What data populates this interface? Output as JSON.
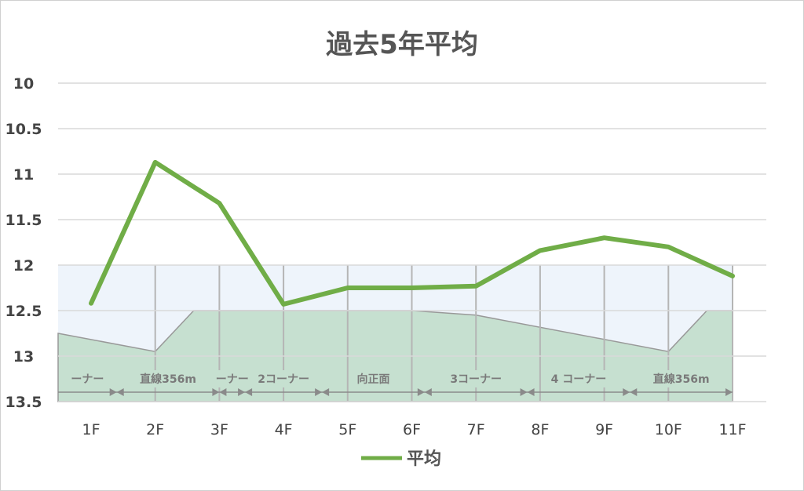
{
  "chart_data": {
    "type": "line",
    "title": "過去5年平均",
    "categories": [
      "1F",
      "2F",
      "3F",
      "4F",
      "5F",
      "6F",
      "7F",
      "8F",
      "9F",
      "10F",
      "11F"
    ],
    "y_ticks": [
      "10",
      "10.5",
      "11",
      "11.5",
      "12",
      "12.5",
      "13",
      "13.5"
    ],
    "ylim": [
      10,
      13.5
    ],
    "y_inverted": true,
    "grid": true,
    "legend_position": "bottom",
    "series": [
      {
        "name": "平均",
        "color": "#70ad47",
        "values": [
          12.42,
          10.87,
          11.32,
          12.43,
          12.25,
          12.25,
          12.23,
          11.84,
          11.7,
          11.8,
          12.12
        ]
      }
    ],
    "course_overlay": {
      "band_top": 12.0,
      "band_bottom": 13.5,
      "fill_light": "#eef4fb",
      "fill_green": "#c6e0d0",
      "profile_x": [
        0.5,
        2,
        2.6,
        6,
        7,
        10,
        10.6,
        11
      ],
      "profile_y": [
        12.75,
        12.95,
        12.5,
        12.5,
        12.55,
        12.95,
        12.5,
        12.5
      ],
      "sections": [
        {
          "label": "ーナー",
          "from": 0.5,
          "to": 1.4
        },
        {
          "label": "直線356m",
          "from": 1.4,
          "to": 3.0
        },
        {
          "label": "ーナー",
          "from": 3.0,
          "to": 3.4
        },
        {
          "label": "2コーナー",
          "from": 3.4,
          "to": 4.6
        },
        {
          "label": "向正面",
          "from": 4.6,
          "to": 6.2
        },
        {
          "label": "3コーナー",
          "from": 6.2,
          "to": 7.8
        },
        {
          "label": "4 コーナー",
          "from": 7.8,
          "to": 9.4
        },
        {
          "label": "直線356m",
          "from": 9.4,
          "to": 11.0
        }
      ]
    }
  }
}
